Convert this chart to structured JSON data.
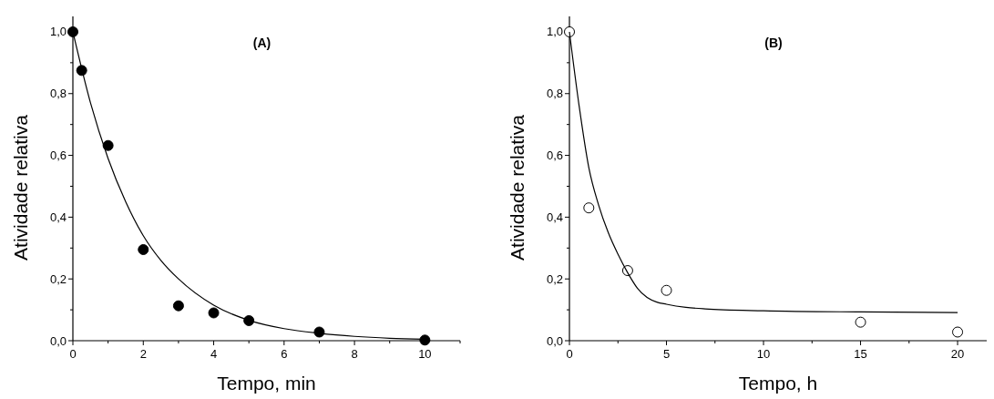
{
  "chart_data": [
    {
      "type": "scatter",
      "title": "(A)",
      "xlabel": "Tempo, min",
      "ylabel": "Atividade relativa",
      "xlim": [
        0,
        11
      ],
      "ylim": [
        0,
        1.05
      ],
      "xticks": [
        0,
        {
          "value": 1,
          "label": null
        },
        2,
        {
          "value": 3,
          "label": null
        },
        4,
        {
          "value": 5,
          "label": null
        },
        6,
        {
          "value": 7,
          "label": null
        },
        8,
        {
          "value": 9,
          "label": null
        },
        10,
        {
          "value": 11,
          "label": null
        }
      ],
      "yticks": [
        {
          "value": 0,
          "label": "0,0"
        },
        {
          "value": 0.1,
          "label": null
        },
        {
          "value": 0.2,
          "label": "0,2"
        },
        {
          "value": 0.3,
          "label": null
        },
        {
          "value": 0.4,
          "label": "0,4"
        },
        {
          "value": 0.5,
          "label": null
        },
        {
          "value": 0.6,
          "label": "0,6"
        },
        {
          "value": 0.7,
          "label": null
        },
        {
          "value": 0.8,
          "label": "0,8"
        },
        {
          "value": 0.9,
          "label": null
        },
        {
          "value": 1,
          "label": "1,0"
        }
      ],
      "grid": false,
      "marker": "circle",
      "series": [
        {
          "color": "#000000",
          "x": [
            0,
            0.25,
            1,
            2,
            3,
            4,
            5,
            7,
            10
          ],
          "values": [
            1,
            0.875,
            0.632,
            0.295,
            0.113,
            0.09,
            0.065,
            0.028,
            0.002
          ]
        },
        {
          "type": "line",
          "color": "#000000",
          "marker": "none",
          "x": [
            0,
            0.5,
            1,
            1.5,
            2,
            2.5,
            3,
            4,
            5,
            6,
            7,
            8,
            9,
            10
          ],
          "values": [
            1,
            0.77,
            0.59,
            0.45,
            0.34,
            0.26,
            0.2,
            0.115,
            0.066,
            0.039,
            0.024,
            0.014,
            0.008,
            0.005
          ]
        }
      ]
    },
    {
      "type": "scatter",
      "title": "(B)",
      "xlabel": "Tempo, h",
      "ylabel": "Atividade relativa",
      "xlim": [
        0,
        21.5
      ],
      "ylim": [
        0,
        1.05
      ],
      "xticks": [
        0,
        {
          "value": 2.5,
          "label": null
        },
        5,
        {
          "value": 7.5,
          "label": null
        },
        10,
        {
          "value": 12.5,
          "label": null
        },
        15,
        {
          "value": 17.5,
          "label": null
        },
        20
      ],
      "yticks": [
        {
          "value": 0,
          "label": "0,0"
        },
        {
          "value": 0.1,
          "label": null
        },
        {
          "value": 0.2,
          "label": "0,2"
        },
        {
          "value": 0.3,
          "label": null
        },
        {
          "value": 0.4,
          "label": "0,4"
        },
        {
          "value": 0.5,
          "label": null
        },
        {
          "value": 0.6,
          "label": "0,6"
        },
        {
          "value": 0.7,
          "label": null
        },
        {
          "value": 0.8,
          "label": "0,8"
        },
        {
          "value": 0.9,
          "label": null
        },
        {
          "value": 1,
          "label": "1,0"
        }
      ],
      "grid": false,
      "marker": "circle",
      "series": [
        {
          "color": "#ffffff",
          "x": [
            0,
            1,
            3,
            5,
            15,
            20
          ],
          "values": [
            1,
            0.43,
            0.227,
            0.163,
            0.06,
            0.028
          ]
        },
        {
          "type": "line",
          "color": "#000000",
          "marker": "none",
          "x": [
            0,
            0.5,
            1,
            1.5,
            2,
            2.5,
            3,
            3.5,
            4,
            4.5,
            5,
            6,
            7,
            10,
            15,
            20
          ],
          "values": [
            1,
            0.76,
            0.56,
            0.44,
            0.35,
            0.28,
            0.22,
            0.17,
            0.14,
            0.125,
            0.118,
            0.108,
            0.103,
            0.097,
            0.093,
            0.091
          ]
        }
      ]
    }
  ]
}
